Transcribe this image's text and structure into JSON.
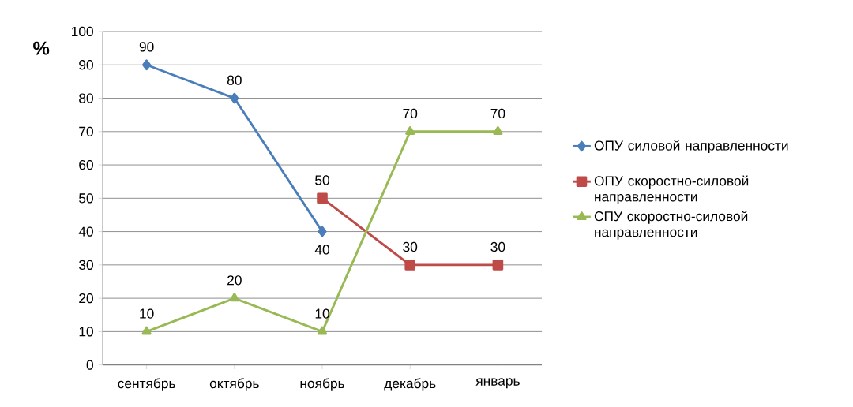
{
  "chart_data": {
    "type": "line",
    "ylabel": "%",
    "categories": [
      "сентябрь",
      "октябрь",
      "ноябрь",
      "декабрь",
      "январь"
    ],
    "series": [
      {
        "name": "ОПУ силовой направленности",
        "color": "#4a7ebb",
        "marker": "diamond",
        "values": [
          90,
          80,
          40,
          null,
          null
        ]
      },
      {
        "name": "ОПУ скоростно-силовой направленности",
        "color": "#be4b48",
        "marker": "square",
        "values": [
          null,
          null,
          50,
          30,
          30
        ]
      },
      {
        "name": "СПУ скоростно-силовой направленности",
        "color": "#98b954",
        "marker": "triangle",
        "values": [
          10,
          20,
          10,
          70,
          70
        ]
      }
    ],
    "ylim": [
      0,
      100
    ],
    "yticks": [
      0,
      10,
      20,
      30,
      40,
      50,
      60,
      70,
      80,
      90,
      100
    ],
    "grid": "y",
    "legend": "right",
    "data_labels": true
  }
}
